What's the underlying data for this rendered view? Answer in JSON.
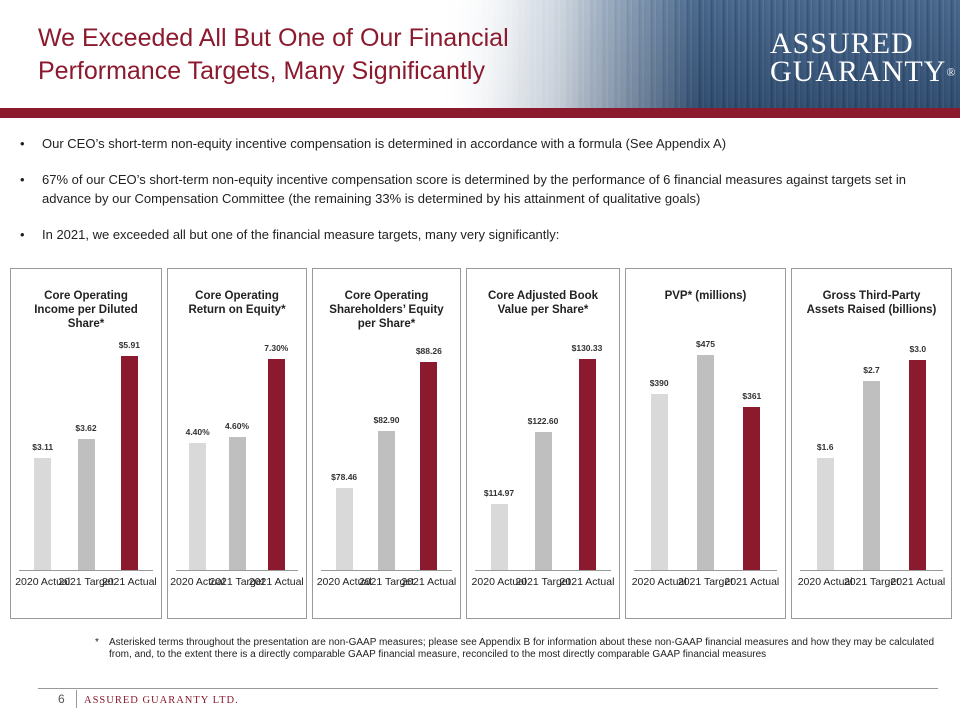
{
  "header": {
    "title_line1": "We Exceeded  All But One of Our Financial",
    "title_line2": "Performance Targets, Many Significantly",
    "logo_line1": "ASSURED",
    "logo_line2": "GUARANTY",
    "logo_mark": "®",
    "colors": {
      "brand": "#8b1a2e"
    }
  },
  "bullets": [
    {
      "marker": "•",
      "text": "Our CEO’s short-term non-equity incentive compensation is determined in accordance with a formula (See Appendix A)"
    },
    {
      "marker": "•",
      "text": "67% of our CEO’s short-term non-equity incentive compensation score is determined by the performance of 6 financial measures against targets set in advance by our Compensation Committee (the remaining 33% is determined by his attainment of qualitative goals)"
    },
    {
      "marker": "•",
      "text": "In 2021, we exceeded all but one of the financial measure targets, many very significantly:"
    }
  ],
  "chart_data": [
    {
      "type": "bar",
      "title": "Core Operating Income per Diluted Share*",
      "categories": [
        "2020 Actual",
        "2021 Target",
        "2021 Actual"
      ],
      "values": [
        3.11,
        3.62,
        5.91
      ],
      "labels": [
        "$3.11",
        "$3.62",
        "$5.91"
      ],
      "ylim": [
        0,
        6.0
      ]
    },
    {
      "type": "bar",
      "title": "Core Operating Return on Equity*",
      "categories": [
        "2020 Actual",
        "2021 Target",
        "2021 Actual"
      ],
      "values": [
        4.4,
        4.6,
        7.3
      ],
      "labels": [
        "4.40%",
        "4.60%",
        "7.30%"
      ],
      "ylim": [
        0,
        7.5
      ]
    },
    {
      "type": "bar",
      "title": "Core Operating Shareholders’ Equity  per Share*",
      "categories": [
        "2020 Actual",
        "2021 Target",
        "2021 Actual"
      ],
      "values": [
        78.46,
        82.9,
        88.26
      ],
      "labels": [
        "$78.46",
        "$82.90",
        "$88.26"
      ],
      "ylim": [
        72,
        89
      ]
    },
    {
      "type": "bar",
      "title": "Core Adjusted Book Value per Share*",
      "categories": [
        "2020 Actual",
        "2021 Target",
        "2021 Actual"
      ],
      "values": [
        114.97,
        122.6,
        130.33
      ],
      "labels": [
        "$114.97",
        "$122.60",
        "$130.33"
      ],
      "ylim": [
        108,
        131
      ]
    },
    {
      "type": "bar",
      "title": "PVP* (millions)",
      "categories": [
        "2020 Actual",
        "2021 Target",
        "2021 Actual"
      ],
      "values": [
        390,
        475,
        361
      ],
      "labels": [
        "$390",
        "$475",
        "$361"
      ],
      "ylim": [
        0,
        480
      ]
    },
    {
      "type": "bar",
      "title": "Gross Third-Party Assets Raised (billions)",
      "categories": [
        "2020 Actual",
        "2021 Target",
        "2021 Actual"
      ],
      "values": [
        1.6,
        2.7,
        3.0
      ],
      "labels": [
        "$1.6",
        "$2.7",
        "$3.0"
      ],
      "ylim": [
        0,
        3.1
      ]
    }
  ],
  "bar_colors": [
    "#d9d9d9",
    "#bfbfbf",
    "#8b1a2e"
  ],
  "footnote": {
    "star": "*",
    "text": "Asterisked terms throughout the presentation are non-GAAP measures; please see Appendix B for information about these non-GAAP financial measures and how they may be calculated from, and, to the extent there is a directly comparable GAAP financial measure, reconciled to the most directly comparable GAAP financial measures"
  },
  "footer": {
    "page_number": "6",
    "brand": "ASSURED GUARANTY LTD."
  }
}
